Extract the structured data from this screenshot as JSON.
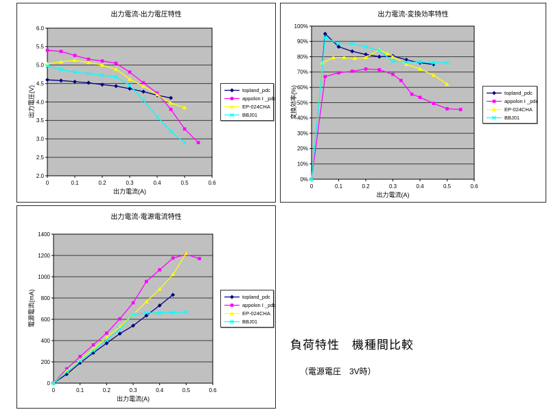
{
  "page": {
    "heading": "負荷特性　機種間比較",
    "subheading": "（電源電圧　3V時）"
  },
  "colors": {
    "plot_bg": "#C0C0C0",
    "gridline": "#3a3a3a",
    "topland": "#000080",
    "appolon": "#FF00FF",
    "ep024cha": "#FFFF00",
    "bbj01": "#00FFFF"
  },
  "chart_data": [
    {
      "type": "line",
      "title": "出力電流-出力電圧特性",
      "xlabel": "出力電流(A)",
      "ylabel": "出力電圧(V)",
      "xlim": [
        0,
        0.6
      ],
      "ylim": [
        2.0,
        6.0
      ],
      "grid": true,
      "legend_position": "right",
      "x_ticks": [
        0,
        0.1,
        0.2,
        0.3,
        0.4,
        0.5,
        0.6
      ],
      "x_tick_labels": [
        "0",
        "0.1",
        "0.2",
        "0.3",
        "0.4",
        "0.5",
        "0.6"
      ],
      "y_ticks": [
        2.0,
        2.5,
        3.0,
        3.5,
        4.0,
        4.5,
        5.0,
        5.5,
        6.0
      ],
      "y_tick_labels": [
        "2.0",
        "2.5",
        "3.0",
        "3.5",
        "4.0",
        "4.5",
        "5.0",
        "5.5",
        "6.0"
      ],
      "series": [
        {
          "name": "topland_pdc",
          "color": "#000080",
          "marker": "diamond",
          "points": [
            [
              0,
              4.6
            ],
            [
              0.05,
              4.58
            ],
            [
              0.1,
              4.55
            ],
            [
              0.15,
              4.52
            ],
            [
              0.2,
              4.47
            ],
            [
              0.25,
              4.43
            ],
            [
              0.3,
              4.36
            ],
            [
              0.35,
              4.28
            ],
            [
              0.4,
              4.18
            ],
            [
              0.45,
              4.11
            ]
          ]
        },
        {
          "name": "appolon I _pdc",
          "color": "#FF00FF",
          "marker": "square",
          "points": [
            [
              0,
              5.4
            ],
            [
              0.05,
              5.37
            ],
            [
              0.1,
              5.26
            ],
            [
              0.15,
              5.16
            ],
            [
              0.2,
              5.11
            ],
            [
              0.25,
              5.05
            ],
            [
              0.3,
              4.81
            ],
            [
              0.35,
              4.52
            ],
            [
              0.4,
              4.24
            ],
            [
              0.45,
              3.8
            ],
            [
              0.5,
              3.27
            ],
            [
              0.55,
              2.9
            ]
          ]
        },
        {
          "name": "EP-024CHA",
          "color": "#FFFF00",
          "marker": "triangle",
          "points": [
            [
              0,
              5.03
            ],
            [
              0.05,
              5.09
            ],
            [
              0.1,
              5.13
            ],
            [
              0.15,
              5.07
            ],
            [
              0.2,
              5.0
            ],
            [
              0.25,
              4.89
            ],
            [
              0.3,
              4.62
            ],
            [
              0.35,
              4.43
            ],
            [
              0.4,
              4.2
            ],
            [
              0.45,
              3.97
            ],
            [
              0.5,
              3.85
            ]
          ]
        },
        {
          "name": "BBJ01",
          "color": "#00FFFF",
          "marker": "x",
          "points": [
            [
              0,
              4.97
            ],
            [
              0.05,
              4.88
            ],
            [
              0.1,
              4.81
            ],
            [
              0.15,
              4.77
            ],
            [
              0.2,
              4.72
            ],
            [
              0.25,
              4.68
            ],
            [
              0.3,
              4.45
            ],
            [
              0.35,
              4.05
            ],
            [
              0.4,
              3.6
            ],
            [
              0.45,
              3.2
            ],
            [
              0.5,
              2.9
            ]
          ]
        }
      ]
    },
    {
      "type": "line",
      "title": "出力電流-変換効率特性",
      "xlabel": "出力電流(A)",
      "ylabel": "変換効率(%)",
      "xlim": [
        0,
        0.6
      ],
      "ylim": [
        0,
        100
      ],
      "grid": true,
      "legend_position": "right",
      "x_ticks": [
        0,
        0.1,
        0.2,
        0.3,
        0.4,
        0.5,
        0.6
      ],
      "x_tick_labels": [
        "0",
        "0.1",
        "0.2",
        "0.3",
        "0.4",
        "0.5",
        "0.6"
      ],
      "y_ticks": [
        0,
        10,
        20,
        30,
        40,
        50,
        60,
        70,
        80,
        90,
        100
      ],
      "y_tick_labels": [
        "0%",
        "10%",
        "20%",
        "30%",
        "40%",
        "50%",
        "60%",
        "70%",
        "80%",
        "90%",
        "100%"
      ],
      "series": [
        {
          "name": "topland_pdc",
          "color": "#000080",
          "marker": "diamond",
          "points": [
            [
              0,
              0
            ],
            [
              0.05,
              95
            ],
            [
              0.1,
              86.5
            ],
            [
              0.15,
              83.5
            ],
            [
              0.2,
              81.5
            ],
            [
              0.25,
              80
            ],
            [
              0.3,
              80.5
            ],
            [
              0.35,
              78
            ],
            [
              0.4,
              76
            ],
            [
              0.45,
              75
            ]
          ]
        },
        {
          "name": "appolon I _pdc",
          "color": "#FF00FF",
          "marker": "square",
          "points": [
            [
              0,
              0
            ],
            [
              0.05,
              67
            ],
            [
              0.1,
              69.5
            ],
            [
              0.15,
              70.5
            ],
            [
              0.2,
              72
            ],
            [
              0.25,
              71.5
            ],
            [
              0.3,
              68.5
            ],
            [
              0.33,
              64.5
            ],
            [
              0.37,
              55.5
            ],
            [
              0.4,
              53.5
            ],
            [
              0.45,
              49.5
            ],
            [
              0.5,
              46
            ],
            [
              0.55,
              45.5
            ]
          ]
        },
        {
          "name": "EP-024CHA",
          "color": "#FFFF00",
          "marker": "triangle",
          "points": [
            [
              0,
              0
            ],
            [
              0.04,
              76
            ],
            [
              0.08,
              79.5
            ],
            [
              0.12,
              79.5
            ],
            [
              0.16,
              79
            ],
            [
              0.2,
              79.5
            ],
            [
              0.25,
              84.5
            ],
            [
              0.28,
              82
            ],
            [
              0.3,
              80
            ],
            [
              0.35,
              75
            ],
            [
              0.4,
              72
            ],
            [
              0.45,
              68
            ],
            [
              0.5,
              62
            ]
          ]
        },
        {
          "name": "BBJ01",
          "color": "#00FFFF",
          "marker": "x",
          "points": [
            [
              0,
              0
            ],
            [
              0.05,
              92.5
            ],
            [
              0.1,
              88.5
            ],
            [
              0.15,
              88.5
            ],
            [
              0.2,
              86.5
            ],
            [
              0.25,
              84
            ],
            [
              0.3,
              77
            ],
            [
              0.35,
              76.5
            ],
            [
              0.4,
              76.5
            ],
            [
              0.45,
              76
            ],
            [
              0.5,
              76
            ]
          ]
        }
      ]
    },
    {
      "type": "line",
      "title": "出力電流-電源電流特性",
      "xlabel": "出力電流(A)",
      "ylabel": "電源電流(mA)",
      "xlim": [
        0,
        0.6
      ],
      "ylim": [
        0,
        1400
      ],
      "grid": true,
      "legend_position": "right",
      "x_ticks": [
        0,
        0.1,
        0.2,
        0.3,
        0.4,
        0.5,
        0.6
      ],
      "x_tick_labels": [
        "0",
        "0.1",
        "0.2",
        "0.3",
        "0.4",
        "0.5",
        "0.6"
      ],
      "y_ticks": [
        0,
        200,
        400,
        600,
        800,
        1000,
        1200,
        1400
      ],
      "y_tick_labels": [
        "0",
        "200",
        "400",
        "600",
        "800",
        "1000",
        "1200",
        "1400"
      ],
      "series": [
        {
          "name": "topland_pdc",
          "color": "#000080",
          "marker": "diamond",
          "points": [
            [
              0,
              0
            ],
            [
              0.05,
              85
            ],
            [
              0.1,
              190
            ],
            [
              0.15,
              285
            ],
            [
              0.2,
              375
            ],
            [
              0.25,
              465
            ],
            [
              0.3,
              540
            ],
            [
              0.35,
              635
            ],
            [
              0.4,
              730
            ],
            [
              0.45,
              830
            ]
          ]
        },
        {
          "name": "appolon I _pdc",
          "color": "#FF00FF",
          "marker": "square",
          "points": [
            [
              0,
              0
            ],
            [
              0.05,
              135
            ],
            [
              0.1,
              250
            ],
            [
              0.15,
              360
            ],
            [
              0.2,
              470
            ],
            [
              0.25,
              605
            ],
            [
              0.3,
              755
            ],
            [
              0.35,
              955
            ],
            [
              0.4,
              1065
            ],
            [
              0.45,
              1175
            ],
            [
              0.5,
              1210
            ],
            [
              0.55,
              1170
            ]
          ]
        },
        {
          "name": "EP-024CHA",
          "color": "#FFFF00",
          "marker": "triangle",
          "points": [
            [
              0,
              0
            ],
            [
              0.05,
              115
            ],
            [
              0.1,
              215
            ],
            [
              0.15,
              320
            ],
            [
              0.2,
              430
            ],
            [
              0.25,
              530
            ],
            [
              0.3,
              645
            ],
            [
              0.35,
              765
            ],
            [
              0.4,
              885
            ],
            [
              0.45,
              1020
            ],
            [
              0.5,
              1220
            ]
          ]
        },
        {
          "name": "BBJ01",
          "color": "#00FFFF",
          "marker": "x",
          "points": [
            [
              0,
              0
            ],
            [
              0.05,
              105
            ],
            [
              0.1,
              210
            ],
            [
              0.15,
              305
            ],
            [
              0.2,
              405
            ],
            [
              0.25,
              510
            ],
            [
              0.3,
              645
            ],
            [
              0.35,
              660
            ],
            [
              0.4,
              660
            ],
            [
              0.45,
              663
            ],
            [
              0.5,
              667
            ]
          ]
        }
      ]
    }
  ]
}
